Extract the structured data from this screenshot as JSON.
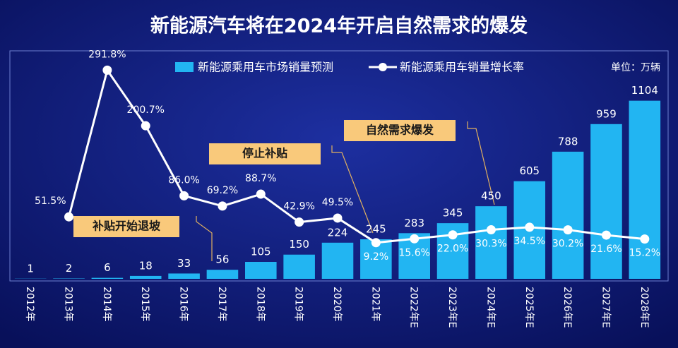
{
  "chart_data": {
    "type": "bar-line",
    "title": "新能源汽车将在2024年开启自然需求的爆发",
    "unit_label": "单位：万辆",
    "categories": [
      "2012年",
      "2013年",
      "2014年",
      "2015年",
      "2016年",
      "2017年",
      "2018年",
      "2019年",
      "2020年",
      "2021年",
      "2022年E",
      "2023年E",
      "2024年E",
      "2025年E",
      "2026年E",
      "2027年E",
      "2028年E"
    ],
    "series": [
      {
        "name": "新能源乘用车市场销量预测",
        "color": "#22b5f2",
        "type": "bar",
        "values": [
          1,
          2,
          6,
          18,
          33,
          56,
          105,
          150,
          224,
          245,
          283,
          345,
          450,
          605,
          788,
          959,
          1104
        ]
      },
      {
        "name": "新能源乘用车销量增长率",
        "color": "#ffffff",
        "type": "line",
        "axis": "y2",
        "values": [
          null,
          51.5,
          291.8,
          200.7,
          86.0,
          69.2,
          88.7,
          42.9,
          49.5,
          9.2,
          15.6,
          22.0,
          30.3,
          34.5,
          30.2,
          21.6,
          15.2
        ],
        "value_labels": [
          null,
          "51.5%",
          "291.8%",
          "200.7%",
          "86.0%",
          "69.2%",
          "88.7%",
          "42.9%",
          "49.5%",
          "9.2%",
          "15.6%",
          "22.0%",
          "30.3%",
          "34.5%",
          "30.2%",
          "21.6%",
          "15.2%"
        ]
      }
    ],
    "annotations": [
      "补贴开始退坡",
      "停止补贴",
      "自然需求爆发"
    ],
    "ylim": [
      0,
      1400
    ],
    "y2lim": [
      -50,
      320
    ]
  }
}
